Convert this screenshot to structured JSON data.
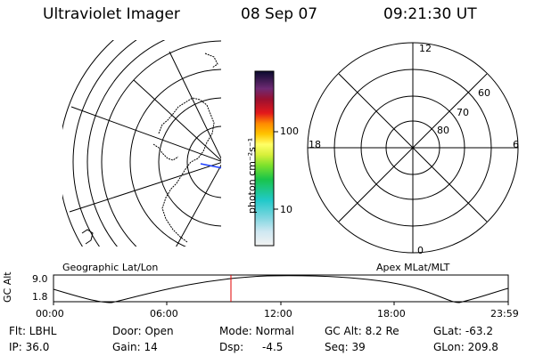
{
  "header": {
    "instrument": "Ultraviolet Imager",
    "date": "08 Sep 07",
    "time": "09:21:30 UT"
  },
  "colorbar": {
    "unit_label": "photon cm⁻²s⁻¹",
    "ticks": [
      "100",
      "10"
    ]
  },
  "polar_plot": {
    "labels": {
      "top": "12",
      "bottom": "0",
      "left": "18",
      "right": "6"
    },
    "lat_labels": [
      "60",
      "70",
      "80"
    ]
  },
  "plot_captions": {
    "left": "Geographic Lat/Lon",
    "right": "Apex MLat/MLT"
  },
  "altitude_plot": {
    "ylabel": "GC Alt",
    "y_ticks": [
      "9.0",
      "1.8"
    ],
    "x_ticks": [
      "00:00",
      "06:00",
      "12:00",
      "18:00",
      "23:59"
    ],
    "current_time_marker": "09:21:30"
  },
  "info": {
    "row1": [
      "Flt: LBHL",
      "Door: Open",
      "Mode: Normal",
      "GC Alt: 8.2 Re",
      "GLat: -63.2"
    ],
    "row2": [
      "IP: 36.0",
      "Gain: 14",
      "Dsp:",
      "-4.5",
      "Seq: 39",
      "GLon: 209.8"
    ]
  },
  "colors": {
    "marker": "#e00000",
    "land": "#000000"
  }
}
